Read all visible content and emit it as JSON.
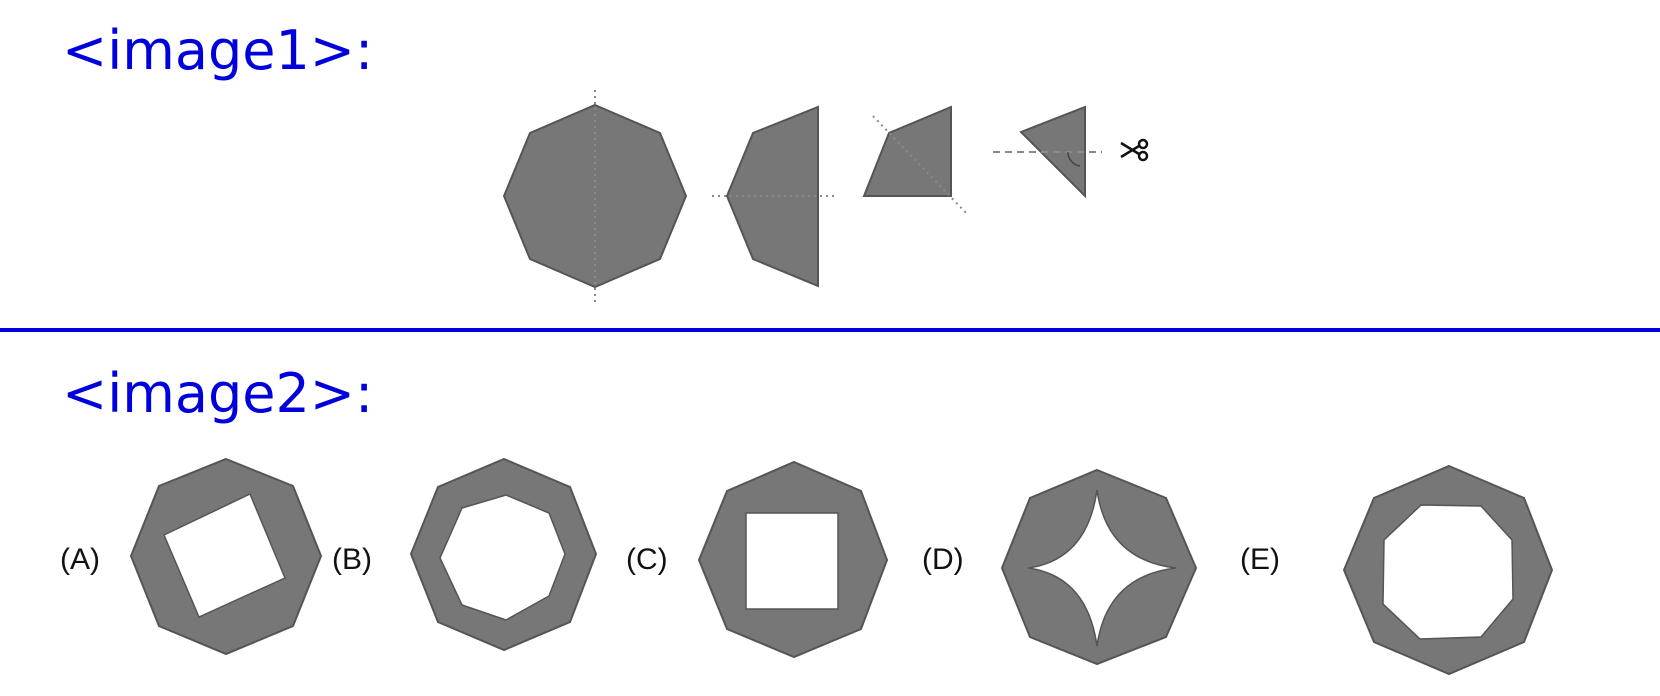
{
  "sections": {
    "image1_label": "<image1>:",
    "image2_label": "<image2>:"
  },
  "options": [
    {
      "label": "(A)",
      "cutout": "rotated-square"
    },
    {
      "label": "(B)",
      "cutout": "octagon"
    },
    {
      "label": "(C)",
      "cutout": "square"
    },
    {
      "label": "(D)",
      "cutout": "four-pointed-star"
    },
    {
      "label": "(E)",
      "cutout": "large-octagon"
    }
  ],
  "colors": {
    "shape_fill": "#777777",
    "shape_stroke": "#555555",
    "label_blue": "#0000dd",
    "fold_line": "#8a8a8a"
  },
  "icons": {
    "cut_marker": "scissors-icon"
  }
}
